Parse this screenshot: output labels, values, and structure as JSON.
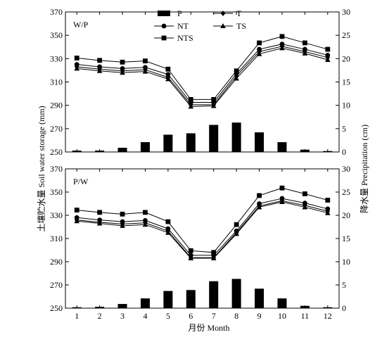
{
  "chart_data": {
    "type": "bar+line",
    "colors": {
      "marks": "#000000",
      "background": "#ffffff"
    },
    "xlabel": "月份 Month",
    "ylabel_left": "土壤贮水量 Soil water storage (mm)",
    "ylabel_right": "降水量 Precipitation (cm)",
    "categories": [
      "1",
      "2",
      "3",
      "4",
      "5",
      "6",
      "7",
      "8",
      "9",
      "10",
      "11",
      "12"
    ],
    "left_ylim": [
      250,
      370
    ],
    "left_ticks": [
      "250",
      "270",
      "290",
      "310",
      "330",
      "350",
      "370"
    ],
    "right_ylim": [
      0,
      30
    ],
    "right_ticks": [
      "0",
      "5",
      "10",
      "15",
      "20",
      "25",
      "30"
    ],
    "legend": [
      {
        "label": "P",
        "marker": "bar"
      },
      {
        "label": "T",
        "marker": "diamond"
      },
      {
        "label": "NT",
        "marker": "circle"
      },
      {
        "label": "TS",
        "marker": "triangle"
      },
      {
        "label": "NTS",
        "marker": "square"
      }
    ],
    "panels": [
      {
        "label": "W/P",
        "bars": {
          "name": "P",
          "axis": "right",
          "values": [
            0.3,
            0.3,
            0.9,
            2.1,
            3.7,
            4.0,
            5.8,
            6.3,
            4.2,
            2.1,
            0.5,
            0.2
          ]
        },
        "series": [
          {
            "name": "NTS",
            "marker": "square",
            "values": [
              330.5,
              328.5,
              327,
              328,
              321,
              295,
              295,
              319.5,
              343.5,
              349,
              343.5,
              338
            ]
          },
          {
            "name": "NT",
            "marker": "circle",
            "values": [
              325,
              323,
              321.5,
              322.5,
              316.5,
              292.5,
              292.5,
              317,
              338,
              342.5,
              338,
              333
            ]
          },
          {
            "name": "T",
            "marker": "diamond",
            "values": [
              323,
              321,
              319.5,
              320.5,
              314,
              290.5,
              290.5,
              315,
              336,
              340.5,
              336,
              331
            ]
          },
          {
            "name": "TS",
            "marker": "triangle",
            "values": [
              321.5,
              319.5,
              318,
              319,
              312.5,
              289,
              289.5,
              313,
              334,
              339,
              334.5,
              329
            ]
          }
        ]
      },
      {
        "label": "P/W",
        "bars": {
          "name": "P",
          "axis": "right",
          "values": [
            0.2,
            0.3,
            0.9,
            2.1,
            3.7,
            3.9,
            5.8,
            6.3,
            4.2,
            2.1,
            0.5,
            0.2
          ]
        },
        "series": [
          {
            "name": "NTS",
            "marker": "square",
            "values": [
              334.5,
              332.5,
              331,
              332.5,
              324.5,
              299.5,
              298,
              322,
              347,
              353.5,
              348.5,
              343
            ]
          },
          {
            "name": "NT",
            "marker": "circle",
            "values": [
              328,
              326,
              324.5,
              325.5,
              318.5,
              295.5,
              295.5,
              316.5,
              340,
              344.5,
              340.5,
              335.5
            ]
          },
          {
            "name": "T",
            "marker": "diamond",
            "values": [
              326,
              324,
              322.5,
              323.5,
              316.5,
              293.5,
              293.5,
              315,
              338,
              342.5,
              338.5,
              333.5
            ]
          },
          {
            "name": "TS",
            "marker": "triangle",
            "values": [
              325,
              323,
              321,
              322,
              315,
              293,
              293,
              314,
              337,
              341.5,
              337,
              332
            ]
          }
        ]
      }
    ]
  }
}
